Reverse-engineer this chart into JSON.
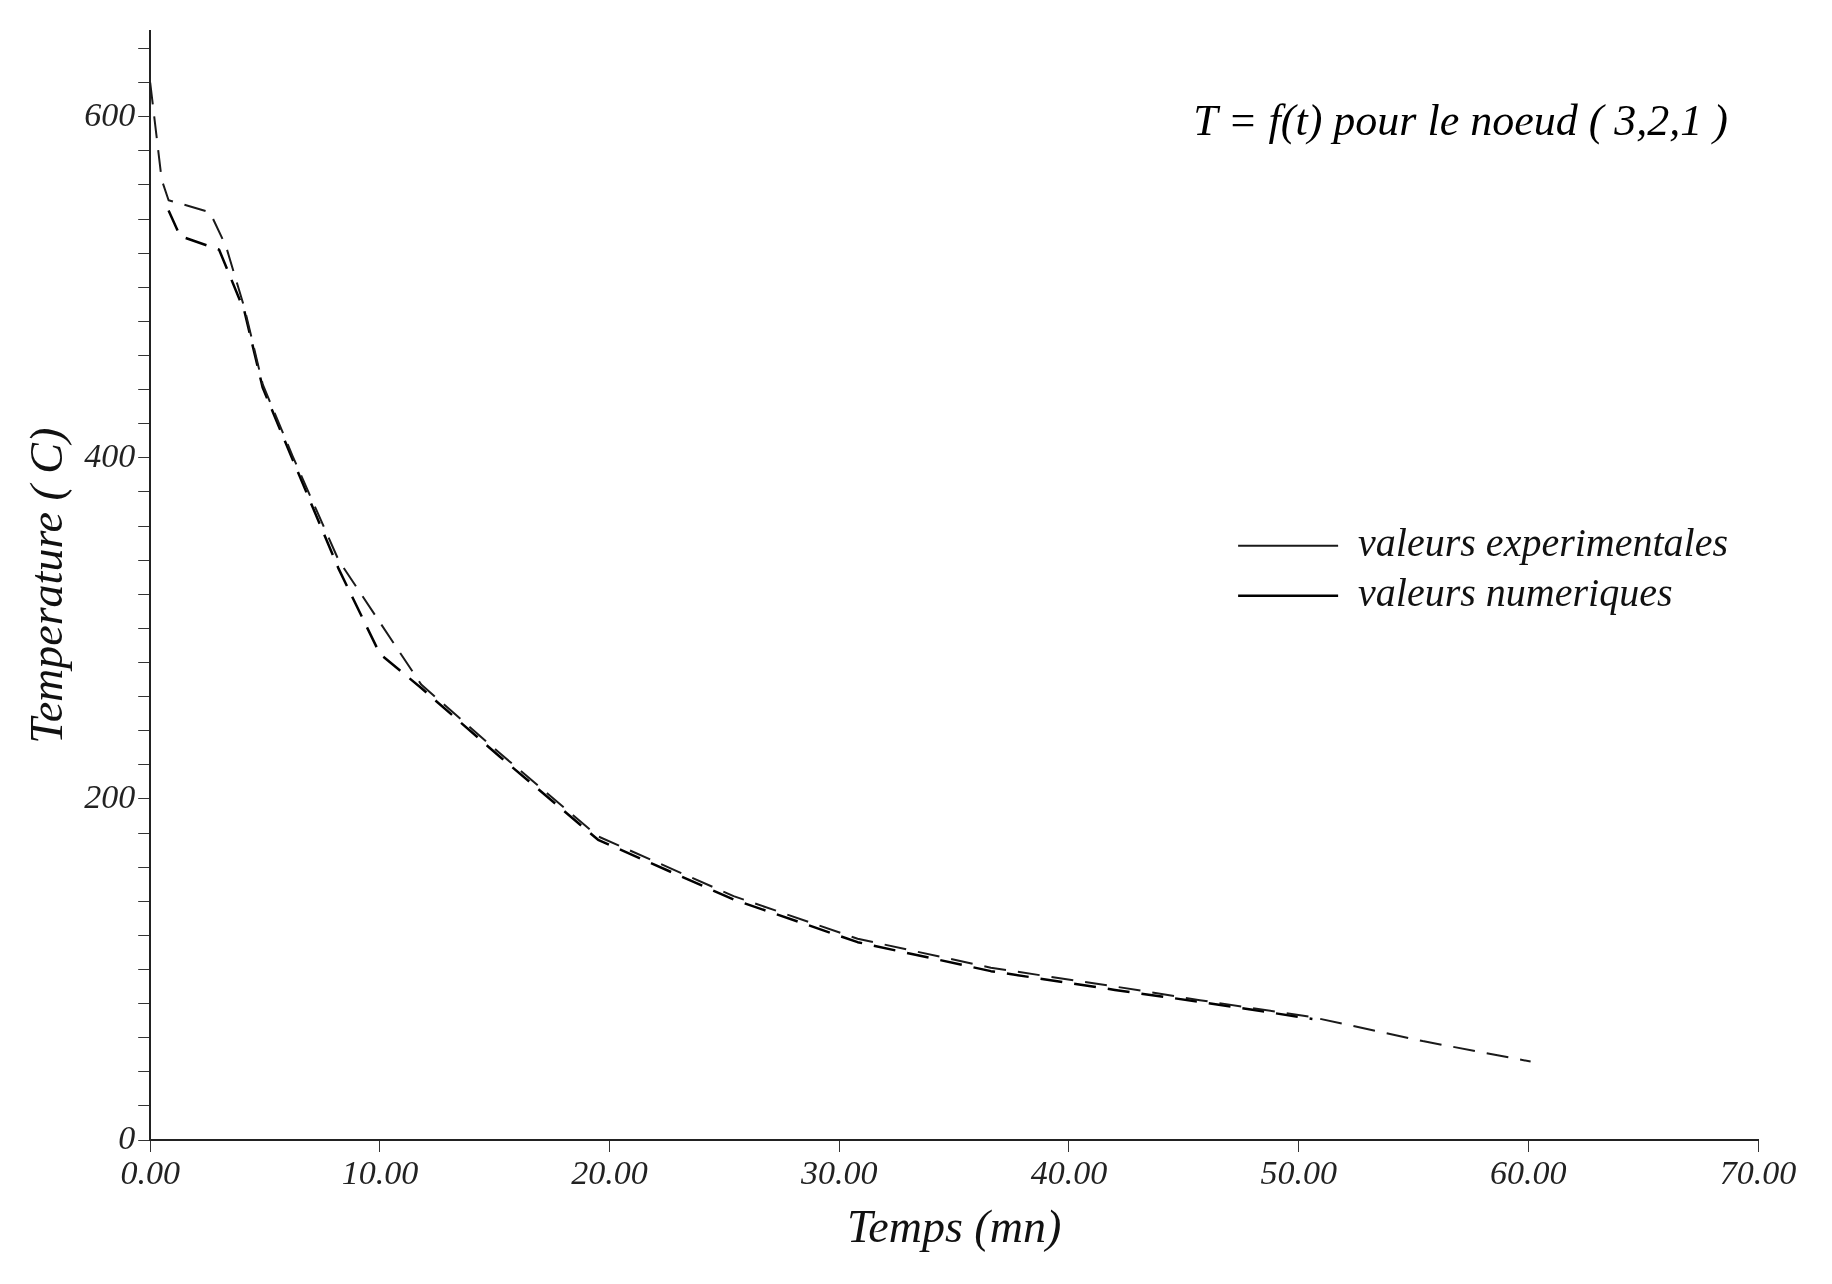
{
  "chart_data": {
    "type": "line",
    "title": "T = f(t) pour le noeud ( 3,2,1 )",
    "xlabel": "Temps (mn)",
    "ylabel": "Temperature ( C)",
    "legend": "right",
    "grid": false,
    "marker": "none",
    "xlim": [
      0,
      70
    ],
    "ylim": [
      0,
      650
    ],
    "xticks": [
      {
        "value": 0,
        "label": "0.00"
      },
      {
        "value": 10,
        "label": "10.00"
      },
      {
        "value": 20,
        "label": "20.00"
      },
      {
        "value": 30,
        "label": "30.00"
      },
      {
        "value": 40,
        "label": "40.00"
      },
      {
        "value": 50,
        "label": "50.00"
      },
      {
        "value": 60,
        "label": "60.00"
      },
      {
        "value": 70,
        "label": "70.00"
      }
    ],
    "yticks": [
      0,
      {
        "value": 20,
        "label": null
      },
      {
        "value": 40,
        "label": null
      },
      {
        "value": 60,
        "label": null
      },
      {
        "value": 80,
        "label": null
      },
      {
        "value": 100,
        "label": null
      },
      {
        "value": 120,
        "label": null
      },
      {
        "value": 140,
        "label": null
      },
      {
        "value": 160,
        "label": null
      },
      {
        "value": 180,
        "label": null
      },
      200,
      {
        "value": 220,
        "label": null
      },
      {
        "value": 240,
        "label": null
      },
      {
        "value": 260,
        "label": null
      },
      {
        "value": 280,
        "label": null
      },
      {
        "value": 300,
        "label": null
      },
      {
        "value": 320,
        "label": null
      },
      {
        "value": 340,
        "label": null
      },
      {
        "value": 360,
        "label": null
      },
      {
        "value": 380,
        "label": null
      },
      400,
      {
        "value": 420,
        "label": null
      },
      {
        "value": 440,
        "label": null
      },
      {
        "value": 460,
        "label": null
      },
      {
        "value": 480,
        "label": null
      },
      {
        "value": 500,
        "label": null
      },
      {
        "value": 520,
        "label": null
      },
      {
        "value": 540,
        "label": null
      },
      {
        "value": 560,
        "label": null
      },
      {
        "value": 580,
        "label": null
      },
      600,
      {
        "value": 620,
        "label": null
      },
      {
        "value": 640,
        "label": null
      }
    ],
    "series": [
      {
        "name": "valeurs experimentales",
        "color": "#1a1a1a",
        "line_style": "dashed",
        "x": [
          0,
          0.5,
          0.8,
          2.6,
          3.3,
          4.1,
          4.9,
          6.2,
          8.2,
          11.8,
          15.2,
          19.5,
          25.4,
          30.8,
          36.6,
          42,
          45.7,
          50.6,
          55.4,
          60.1
        ],
        "values": [
          620,
          563,
          551,
          544,
          524,
          488,
          443,
          401,
          340,
          267,
          227,
          178,
          143,
          118,
          101,
          90,
          82,
          72,
          58,
          46
        ]
      },
      {
        "name": "valeurs numeriques",
        "color": "#000000",
        "line_style": "dashed",
        "x": [
          0.8,
          1.3,
          3,
          4.1,
          4.9,
          6.2,
          8.2,
          10,
          11.8,
          15.2,
          19.5,
          25.4,
          30.8,
          36.6,
          42,
          45.7,
          50.6
        ],
        "values": [
          545,
          530,
          522,
          486,
          441,
          399,
          335,
          285,
          265,
          225,
          176,
          141,
          116,
          99,
          88,
          81,
          71
        ]
      }
    ]
  }
}
